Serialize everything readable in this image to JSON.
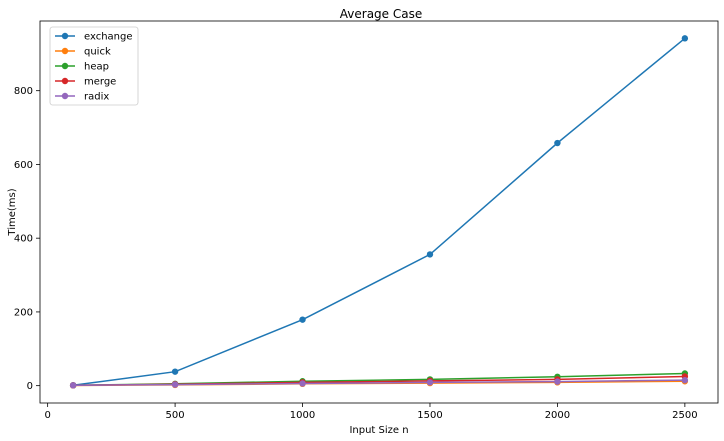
{
  "chart_data": {
    "type": "line",
    "title": "Average Case",
    "xlabel": "Input Size n",
    "ylabel": "Time(ms)",
    "x": [
      100,
      500,
      1000,
      1500,
      2000,
      2500
    ],
    "xlim": [
      -30,
      2630
    ],
    "ylim": [
      -47,
      989
    ],
    "xticks": [
      0,
      500,
      1000,
      1500,
      2000,
      2500
    ],
    "yticks": [
      0,
      200,
      400,
      600,
      800
    ],
    "grid": false,
    "legend_position": "top-left",
    "series": [
      {
        "name": "exchange",
        "color": "#1f77b4",
        "values": [
          1,
          38,
          179,
          356,
          658,
          942
        ]
      },
      {
        "name": "quick",
        "color": "#ff7f0e",
        "values": [
          0.5,
          2,
          5,
          7,
          9,
          12
        ]
      },
      {
        "name": "heap",
        "color": "#2ca02c",
        "values": [
          1,
          5,
          12,
          17,
          24,
          33
        ]
      },
      {
        "name": "merge",
        "color": "#d62728",
        "values": [
          1,
          4,
          9,
          13,
          17,
          25
        ]
      },
      {
        "name": "radix",
        "color": "#9467bd",
        "values": [
          1,
          3,
          6,
          9,
          11,
          15
        ]
      }
    ]
  }
}
